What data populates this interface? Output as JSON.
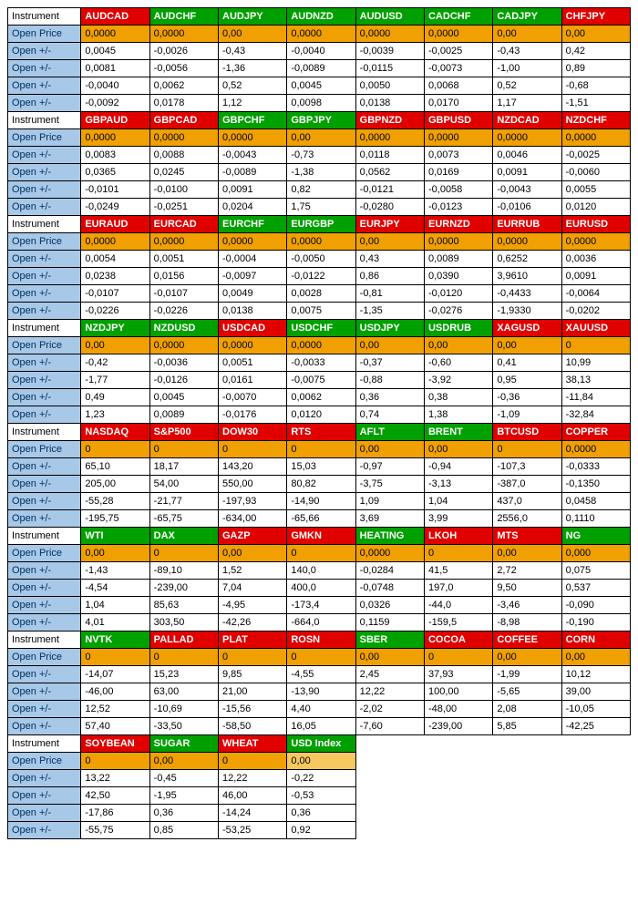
{
  "colors": {
    "red": "#e00000",
    "green": "#00a000",
    "orange": "#f0a000",
    "orange_light": "#f8c860",
    "blue_label": "#a8c8e8",
    "blue_text": "#003060",
    "white": "#ffffff",
    "black": "#000000",
    "border": "#000000"
  },
  "labels": {
    "instrument": "Instrument",
    "open_price": "Open Price",
    "open_pm": "Open +/-"
  },
  "blocks": [
    {
      "headers": [
        {
          "t": "AUDCAD",
          "c": "red"
        },
        {
          "t": "AUDCHF",
          "c": "green"
        },
        {
          "t": "AUDJPY",
          "c": "green"
        },
        {
          "t": "AUDNZD",
          "c": "green"
        },
        {
          "t": "AUDUSD",
          "c": "green"
        },
        {
          "t": "CADCHF",
          "c": "green"
        },
        {
          "t": "CADJPY",
          "c": "green"
        },
        {
          "t": "CHFJPY",
          "c": "red"
        }
      ],
      "open_price": [
        {
          "v": "0,0000",
          "c": "orange"
        },
        {
          "v": "0,0000",
          "c": "orange"
        },
        {
          "v": "0,00",
          "c": "orange"
        },
        {
          "v": "0,0000",
          "c": "orange"
        },
        {
          "v": "0,0000",
          "c": "orange"
        },
        {
          "v": "0,0000",
          "c": "orange"
        },
        {
          "v": "0,00",
          "c": "orange"
        },
        {
          "v": "0,00",
          "c": "orange"
        }
      ],
      "rows": [
        [
          "0,0045",
          "-0,0026",
          "-0,43",
          "-0,0040",
          "-0,0039",
          "-0,0025",
          "-0,43",
          "0,42"
        ],
        [
          "0,0081",
          "-0,0056",
          "-1,36",
          "-0,0089",
          "-0,0115",
          "-0,0073",
          "-1,00",
          "0,89"
        ],
        [
          "-0,0040",
          "0,0062",
          "0,52",
          "0,0045",
          "0,0050",
          "0,0068",
          "0,52",
          "-0,68"
        ],
        [
          "-0,0092",
          "0,0178",
          "1,12",
          "0,0098",
          "0,0138",
          "0,0170",
          "1,17",
          "-1,51"
        ]
      ]
    },
    {
      "headers": [
        {
          "t": "GBPAUD",
          "c": "red"
        },
        {
          "t": "GBPCAD",
          "c": "red"
        },
        {
          "t": "GBPCHF",
          "c": "green"
        },
        {
          "t": "GBPJPY",
          "c": "green"
        },
        {
          "t": "GBPNZD",
          "c": "red"
        },
        {
          "t": "GBPUSD",
          "c": "red"
        },
        {
          "t": "NZDCAD",
          "c": "red"
        },
        {
          "t": "NZDCHF",
          "c": "red"
        }
      ],
      "open_price": [
        {
          "v": "0,0000",
          "c": "orange"
        },
        {
          "v": "0,0000",
          "c": "orange"
        },
        {
          "v": "0,0000",
          "c": "orange"
        },
        {
          "v": "0,00",
          "c": "orange"
        },
        {
          "v": "0,0000",
          "c": "orange"
        },
        {
          "v": "0,0000",
          "c": "orange"
        },
        {
          "v": "0,0000",
          "c": "orange"
        },
        {
          "v": "0,0000",
          "c": "orange"
        }
      ],
      "rows": [
        [
          "0,0083",
          "0,0088",
          "-0,0043",
          "-0,73",
          "0,0118",
          "0,0073",
          "0,0046",
          "-0,0025"
        ],
        [
          "0,0365",
          "0,0245",
          "-0,0089",
          "-1,38",
          "0,0562",
          "0,0169",
          "0,0091",
          "-0,0060"
        ],
        [
          "-0,0101",
          "-0,0100",
          "0,0091",
          "0,82",
          "-0,0121",
          "-0,0058",
          "-0,0043",
          "0,0055"
        ],
        [
          "-0,0249",
          "-0,0251",
          "0,0204",
          "1,75",
          "-0,0280",
          "-0,0123",
          "-0,0106",
          "0,0120"
        ]
      ]
    },
    {
      "headers": [
        {
          "t": "EURAUD",
          "c": "red"
        },
        {
          "t": "EURCAD",
          "c": "red"
        },
        {
          "t": "EURCHF",
          "c": "green"
        },
        {
          "t": "EURGBP",
          "c": "green"
        },
        {
          "t": "EURJPY",
          "c": "red"
        },
        {
          "t": "EURNZD",
          "c": "red"
        },
        {
          "t": "EURRUB",
          "c": "red"
        },
        {
          "t": "EURUSD",
          "c": "red"
        }
      ],
      "open_price": [
        {
          "v": "0,0000",
          "c": "orange"
        },
        {
          "v": "0,0000",
          "c": "orange"
        },
        {
          "v": "0,0000",
          "c": "orange"
        },
        {
          "v": "0,0000",
          "c": "orange"
        },
        {
          "v": "0,00",
          "c": "orange"
        },
        {
          "v": "0,0000",
          "c": "orange"
        },
        {
          "v": "0,0000",
          "c": "orange"
        },
        {
          "v": "0,0000",
          "c": "orange"
        }
      ],
      "rows": [
        [
          "0,0054",
          "0,0051",
          "-0,0004",
          "-0,0050",
          "0,43",
          "0,0089",
          "0,6252",
          "0,0036"
        ],
        [
          "0,0238",
          "0,0156",
          "-0,0097",
          "-0,0122",
          "0,86",
          "0,0390",
          "3,9610",
          "0,0091"
        ],
        [
          "-0,0107",
          "-0,0107",
          "0,0049",
          "0,0028",
          "-0,81",
          "-0,0120",
          "-0,4433",
          "-0,0064"
        ],
        [
          "-0,0226",
          "-0,0226",
          "0,0138",
          "0,0075",
          "-1,35",
          "-0,0276",
          "-1,9330",
          "-0,0202"
        ]
      ]
    },
    {
      "headers": [
        {
          "t": "NZDJPY",
          "c": "green"
        },
        {
          "t": "NZDUSD",
          "c": "green"
        },
        {
          "t": "USDCAD",
          "c": "red"
        },
        {
          "t": "USDCHF",
          "c": "green"
        },
        {
          "t": "USDJPY",
          "c": "green"
        },
        {
          "t": "USDRUB",
          "c": "green"
        },
        {
          "t": "XAGUSD",
          "c": "red"
        },
        {
          "t": "XAUUSD",
          "c": "red"
        }
      ],
      "open_price": [
        {
          "v": "0,00",
          "c": "orange"
        },
        {
          "v": "0,0000",
          "c": "orange"
        },
        {
          "v": "0,0000",
          "c": "orange"
        },
        {
          "v": "0,0000",
          "c": "orange"
        },
        {
          "v": "0,00",
          "c": "orange"
        },
        {
          "v": "0,00",
          "c": "orange"
        },
        {
          "v": "0,00",
          "c": "orange"
        },
        {
          "v": "0",
          "c": "orange"
        }
      ],
      "rows": [
        [
          "-0,42",
          "-0,0036",
          "0,0051",
          "-0,0033",
          "-0,37",
          "-0,60",
          "0,41",
          "10,99"
        ],
        [
          "-1,77",
          "-0,0126",
          "0,0161",
          "-0,0075",
          "-0,88",
          "-3,92",
          "0,95",
          "38,13"
        ],
        [
          "0,49",
          "0,0045",
          "-0,0070",
          "0,0062",
          "0,36",
          "0,38",
          "-0,36",
          "-11,84"
        ],
        [
          "1,23",
          "0,0089",
          "-0,0176",
          "0,0120",
          "0,74",
          "1,38",
          "-1,09",
          "-32,84"
        ]
      ]
    },
    {
      "headers": [
        {
          "t": "NASDAQ",
          "c": "red"
        },
        {
          "t": "S&P500",
          "c": "red"
        },
        {
          "t": "DOW30",
          "c": "red"
        },
        {
          "t": "RTS",
          "c": "red"
        },
        {
          "t": "AFLT",
          "c": "green"
        },
        {
          "t": "BRENT",
          "c": "green"
        },
        {
          "t": "BTCUSD",
          "c": "red"
        },
        {
          "t": "COPPER",
          "c": "red"
        }
      ],
      "open_price": [
        {
          "v": "0",
          "c": "orange"
        },
        {
          "v": "0",
          "c": "orange"
        },
        {
          "v": "0",
          "c": "orange"
        },
        {
          "v": "0",
          "c": "orange"
        },
        {
          "v": "0,00",
          "c": "orange"
        },
        {
          "v": "0,00",
          "c": "orange"
        },
        {
          "v": "0",
          "c": "orange"
        },
        {
          "v": "0,0000",
          "c": "orange"
        }
      ],
      "rows": [
        [
          "65,10",
          "18,17",
          "143,20",
          "15,03",
          "-0,97",
          "-0,94",
          "-107,3",
          "-0,0333"
        ],
        [
          "205,00",
          "54,00",
          "550,00",
          "80,82",
          "-3,75",
          "-3,13",
          "-387,0",
          "-0,1350"
        ],
        [
          "-55,28",
          "-21,77",
          "-197,93",
          "-14,90",
          "1,09",
          "1,04",
          "437,0",
          "0,0458"
        ],
        [
          "-195,75",
          "-65,75",
          "-634,00",
          "-65,66",
          "3,69",
          "3,99",
          "2556,0",
          "0,1110"
        ]
      ]
    },
    {
      "headers": [
        {
          "t": "WTI",
          "c": "green"
        },
        {
          "t": "DAX",
          "c": "green"
        },
        {
          "t": "GAZP",
          "c": "red"
        },
        {
          "t": "GMKN",
          "c": "red"
        },
        {
          "t": "HEATING",
          "c": "green"
        },
        {
          "t": "LKOH",
          "c": "red"
        },
        {
          "t": "MTS",
          "c": "red"
        },
        {
          "t": "NG",
          "c": "green"
        }
      ],
      "open_price": [
        {
          "v": "0,00",
          "c": "orange"
        },
        {
          "v": "0",
          "c": "orange"
        },
        {
          "v": "0,00",
          "c": "orange"
        },
        {
          "v": "0",
          "c": "orange"
        },
        {
          "v": "0,0000",
          "c": "orange"
        },
        {
          "v": "0",
          "c": "orange"
        },
        {
          "v": "0,00",
          "c": "orange"
        },
        {
          "v": "0,000",
          "c": "orange"
        }
      ],
      "rows": [
        [
          "-1,43",
          "-89,10",
          "1,52",
          "140,0",
          "-0,0284",
          "41,5",
          "2,72",
          "0,075"
        ],
        [
          "-4,54",
          "-239,00",
          "7,04",
          "400,0",
          "-0,0748",
          "197,0",
          "9,50",
          "0,537"
        ],
        [
          "1,04",
          "85,63",
          "-4,95",
          "-173,4",
          "0,0326",
          "-44,0",
          "-3,46",
          "-0,090"
        ],
        [
          "4,01",
          "303,50",
          "-42,26",
          "-664,0",
          "0,1159",
          "-159,5",
          "-8,98",
          "-0,190"
        ]
      ]
    },
    {
      "headers": [
        {
          "t": "NVTK",
          "c": "green"
        },
        {
          "t": "PALLAD",
          "c": "red"
        },
        {
          "t": "PLAT",
          "c": "red"
        },
        {
          "t": "ROSN",
          "c": "red"
        },
        {
          "t": "SBER",
          "c": "green"
        },
        {
          "t": "COCOA",
          "c": "red"
        },
        {
          "t": "COFFEE",
          "c": "red"
        },
        {
          "t": "CORN",
          "c": "red"
        }
      ],
      "open_price": [
        {
          "v": "0",
          "c": "orange"
        },
        {
          "v": "0",
          "c": "orange"
        },
        {
          "v": "0",
          "c": "orange"
        },
        {
          "v": "0",
          "c": "orange"
        },
        {
          "v": "0,00",
          "c": "orange"
        },
        {
          "v": "0",
          "c": "orange"
        },
        {
          "v": "0,00",
          "c": "orange"
        },
        {
          "v": "0,00",
          "c": "orange"
        }
      ],
      "rows": [
        [
          "-14,07",
          "15,23",
          "9,85",
          "-4,55",
          "2,45",
          "37,93",
          "-1,99",
          "10,12"
        ],
        [
          "-46,00",
          "63,00",
          "21,00",
          "-13,90",
          "12,22",
          "100,00",
          "-5,65",
          "39,00"
        ],
        [
          "12,52",
          "-10,69",
          "-15,56",
          "4,40",
          "-2,02",
          "-48,00",
          "2,08",
          "-10,05"
        ],
        [
          "57,40",
          "-33,50",
          "-58,50",
          "16,05",
          "-7,60",
          "-239,00",
          "5,85",
          "-42,25"
        ]
      ]
    },
    {
      "headers": [
        {
          "t": "SOYBEAN",
          "c": "red"
        },
        {
          "t": "SUGAR",
          "c": "green"
        },
        {
          "t": "WHEAT",
          "c": "red"
        },
        {
          "t": "USD Index",
          "c": "green"
        }
      ],
      "open_price": [
        {
          "v": "0",
          "c": "orange"
        },
        {
          "v": "0,00",
          "c": "orange"
        },
        {
          "v": "0",
          "c": "orange"
        },
        {
          "v": "0,00",
          "c": "orange_light"
        }
      ],
      "rows": [
        [
          "13,22",
          "-0,45",
          "12,22",
          "-0,22"
        ],
        [
          "42,50",
          "-1,95",
          "46,00",
          "-0,53"
        ],
        [
          "-17,86",
          "0,36",
          "-14,24",
          "0,36"
        ],
        [
          "-55,75",
          "0,85",
          "-53,25",
          "0,92"
        ]
      ]
    }
  ]
}
